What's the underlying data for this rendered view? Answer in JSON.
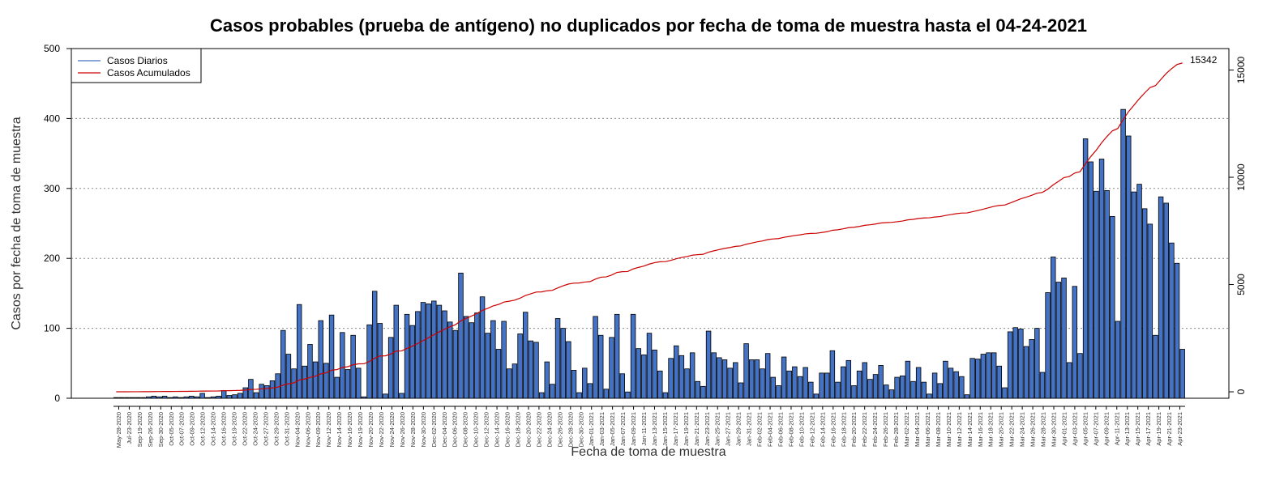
{
  "chart_data": {
    "type": "bar",
    "title": "Casos probables (prueba de antígeno) no duplicados por fecha de toma de muestra hasta el 04-24-2021",
    "xlabel": "Fecha de toma de muestra",
    "ylabel": "Casos por fecha de toma de muestra",
    "ylim": [
      0,
      500
    ],
    "y2lim": [
      -300,
      16000
    ],
    "yticks": [
      0,
      100,
      200,
      300,
      400,
      500
    ],
    "y2ticks": [
      0,
      5000,
      10000,
      15000
    ],
    "grid": "horizontal dotted",
    "legend_position": "top-left",
    "series": [
      {
        "name": "Casos Diarios",
        "type": "bar",
        "color": "#4472c4",
        "values": [
          1,
          1,
          1,
          1,
          1,
          1,
          2,
          3,
          2,
          3,
          1,
          2,
          1,
          2,
          3,
          2,
          7,
          1,
          2,
          3,
          11,
          4,
          5,
          7,
          15,
          27,
          8,
          20,
          18,
          25,
          35,
          97,
          63,
          42,
          134,
          46,
          77,
          52,
          111,
          50,
          119,
          30,
          94,
          41,
          90,
          43,
          2,
          105,
          153,
          107,
          6,
          87,
          133,
          7,
          120,
          104,
          124,
          137,
          135,
          139,
          133,
          125,
          109,
          97,
          179,
          117,
          108,
          122,
          145,
          93,
          111,
          70,
          110,
          42,
          49,
          92,
          123,
          82,
          80,
          8,
          52,
          20,
          114,
          100,
          81,
          40,
          8,
          43,
          21,
          117,
          90,
          13,
          87,
          120,
          35,
          9,
          120,
          71,
          62,
          93,
          69,
          39,
          8,
          57,
          75,
          61,
          42,
          65,
          24,
          17,
          96,
          65,
          58,
          55,
          43,
          51,
          22,
          78,
          55,
          55,
          42,
          64,
          30,
          18,
          59,
          39,
          45,
          31,
          44,
          23,
          6,
          36,
          36,
          68,
          23,
          45,
          54,
          18,
          39,
          51,
          27,
          34,
          47,
          19,
          12,
          30,
          32,
          53,
          24,
          44,
          23,
          6,
          36,
          21,
          53,
          43,
          38,
          31,
          5,
          57,
          56,
          63,
          65,
          65,
          46,
          15,
          95,
          101,
          99,
          74,
          84,
          100,
          37,
          151,
          202,
          166,
          172,
          51,
          160,
          64,
          371,
          338,
          296,
          342,
          297,
          260,
          110,
          413,
          375,
          295,
          306,
          271,
          249,
          90,
          288,
          279,
          222,
          193,
          70
        ]
      },
      {
        "name": "Casos Acumulados",
        "type": "line",
        "color": "#cc0000",
        "axis": "right"
      }
    ],
    "x_tick_labels": [
      "May-28-2020",
      "Jul-23-2020",
      "Sep-19-2020",
      "Sep-26-2020",
      "Sep-30-2020",
      "Oct-05-2020",
      "Oct-07-2020",
      "Oct-09-2020",
      "Oct-12-2020",
      "Oct-14-2020",
      "Oct-16-2020",
      "Oct-19-2020",
      "Oct-22-2020",
      "Oct-24-2020",
      "Oct-27-2020",
      "Oct-29-2020",
      "Oct-31-2020",
      "Nov-04-2020",
      "Nov-06-2020",
      "Nov-09-2020",
      "Nov-12-2020",
      "Nov-14-2020",
      "Nov-16-2020",
      "Nov-19-2020",
      "Nov-20-2020",
      "Nov-22-2020",
      "Nov-24-2020",
      "Nov-26-2020",
      "Nov-28-2020",
      "Nov-30-2020",
      "Dec-02-2020",
      "Dec-04-2020",
      "Dec-06-2020",
      "Dec-08-2020",
      "Dec-10-2020",
      "Dec-12-2020",
      "Dec-14-2020",
      "Dec-16-2020",
      "Dec-18-2020",
      "Dec-20-2020",
      "Dec-22-2020",
      "Dec-24-2020",
      "Dec-26-2020",
      "Dec-28-2020",
      "Dec-30-2020",
      "Jan-01-2021",
      "Jan-03-2021",
      "Jan-05-2021",
      "Jan-07-2021",
      "Jan-09-2021",
      "Jan-11-2021",
      "Jan-13-2021",
      "Jan-15-2021",
      "Jan-17-2021",
      "Jan-19-2021",
      "Jan-21-2021",
      "Jan-23-2021",
      "Jan-25-2021",
      "Jan-27-2021",
      "Jan-29-2021",
      "Jan-31-2021",
      "Feb-02-2021",
      "Feb-04-2021",
      "Feb-06-2021",
      "Feb-08-2021",
      "Feb-10-2021",
      "Feb-12-2021",
      "Feb-14-2021",
      "Feb-16-2021",
      "Feb-18-2021",
      "Feb-20-2021",
      "Feb-22-2021",
      "Feb-24-2021",
      "Feb-26-2021",
      "Feb-28-2021",
      "Mar-02-2021",
      "Mar-04-2021",
      "Mar-06-2021",
      "Mar-08-2021",
      "Mar-10-2021",
      "Mar-12-2021",
      "Mar-14-2021",
      "Mar-16-2021",
      "Mar-18-2021",
      "Mar-20-2021",
      "Mar-22-2021",
      "Mar-24-2021",
      "Mar-26-2021",
      "Mar-28-2021",
      "Mar-30-2021",
      "Apr-01-2021",
      "Apr-03-2021",
      "Apr-05-2021",
      "Apr-07-2021",
      "Apr-09-2021",
      "Apr-11-2021",
      "Apr-13-2021",
      "Apr-15-2021",
      "Apr-17-2021",
      "Apr-19-2021",
      "Apr-21-2021",
      "Apr-23-2021"
    ],
    "annotation": "15342"
  }
}
